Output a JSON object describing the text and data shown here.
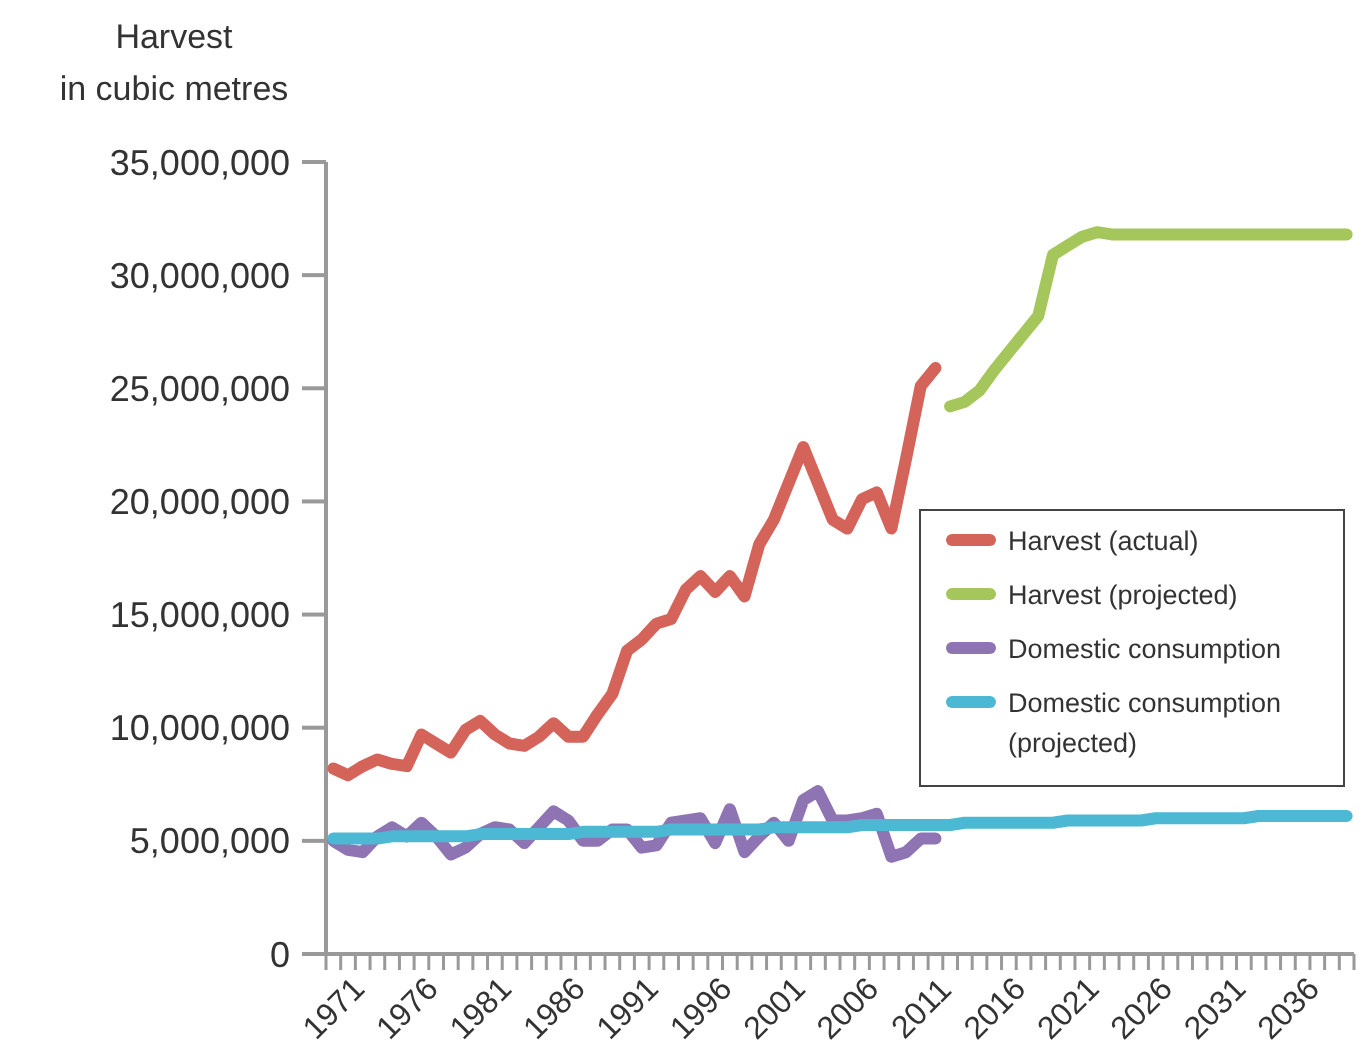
{
  "chart_data": {
    "type": "line",
    "ylabel": "Harvest in cubic metres",
    "categories": [
      "1971",
      null,
      null,
      null,
      null,
      "1976",
      null,
      null,
      null,
      null,
      "1981",
      null,
      null,
      null,
      null,
      "1986",
      null,
      null,
      null,
      null,
      "1991",
      null,
      null,
      null,
      null,
      "1996",
      null,
      null,
      null,
      null,
      "2001",
      null,
      null,
      null,
      null,
      "2006",
      null,
      null,
      null,
      null,
      "2011",
      null,
      null,
      null,
      null,
      "2016",
      null,
      null,
      null,
      null,
      "2021",
      null,
      null,
      null,
      null,
      "2026",
      null,
      null,
      null,
      null,
      "2031",
      null,
      null,
      null,
      null,
      "2036",
      null,
      null,
      null,
      null
    ],
    "ylim": [
      0,
      35000000
    ],
    "yticks": [
      0,
      {
        "value": 5000000,
        "label": "5,000,000"
      },
      {
        "value": 10000000,
        "label": "10,000,000"
      },
      {
        "value": 15000000,
        "label": "15,000,000"
      },
      {
        "value": 20000000,
        "label": "20,000,000"
      },
      {
        "value": 25000000,
        "label": "25,000,000"
      },
      {
        "value": 30000000,
        "label": "30,000,000"
      },
      {
        "value": 35000000,
        "label": "35,000,000"
      }
    ],
    "grid": false,
    "legend": "right",
    "marker": "none",
    "line_style": "solid",
    "series": [
      {
        "name": "Harvest (actual)",
        "color": "#d4635a",
        "values": [
          8200000,
          7900000,
          8300000,
          8600000,
          8400000,
          8300000,
          9700000,
          9300000,
          8900000,
          9900000,
          10300000,
          9700000,
          9300000,
          9200000,
          9600000,
          10200000,
          9600000,
          9600000,
          10600000,
          11500000,
          13400000,
          13900000,
          14600000,
          14800000,
          16100000,
          16700000,
          16000000,
          16700000,
          15800000,
          18100000,
          19200000,
          20800000,
          22400000,
          20800000,
          19200000,
          18800000,
          20100000,
          20400000,
          18800000,
          21900000,
          25100000,
          25900000,
          null,
          null,
          null,
          null,
          null,
          null,
          null,
          null,
          null,
          null,
          null,
          null,
          null,
          null,
          null,
          null,
          null,
          null,
          null,
          null,
          null,
          null,
          null,
          null,
          null,
          null,
          null,
          null
        ]
      },
      {
        "name": "Harvest (projected)",
        "color": "#a5c65a",
        "values": [
          null,
          null,
          null,
          null,
          null,
          null,
          null,
          null,
          null,
          null,
          null,
          null,
          null,
          null,
          null,
          null,
          null,
          null,
          null,
          null,
          null,
          null,
          null,
          null,
          null,
          null,
          null,
          null,
          null,
          null,
          null,
          null,
          null,
          null,
          null,
          null,
          null,
          null,
          null,
          null,
          null,
          null,
          24200000,
          24400000,
          24900000,
          25800000,
          26600000,
          27400000,
          28200000,
          30900000,
          31300000,
          31700000,
          31900000,
          31800000,
          31800000,
          31800000,
          31800000,
          31800000,
          31800000,
          31800000,
          31800000,
          31800000,
          31800000,
          31800000,
          31800000,
          31800000,
          31800000,
          31800000,
          31800000,
          31800000
        ]
      },
      {
        "name": "Domestic consumption",
        "color": "#8e74b3",
        "values": [
          5000000,
          4600000,
          4500000,
          5200000,
          5600000,
          5200000,
          5800000,
          5200000,
          4400000,
          4700000,
          5300000,
          5600000,
          5500000,
          4900000,
          5600000,
          6300000,
          5900000,
          5000000,
          5000000,
          5500000,
          5500000,
          4700000,
          4800000,
          5800000,
          5900000,
          6000000,
          4900000,
          6400000,
          4500000,
          5200000,
          5800000,
          5000000,
          6800000,
          7200000,
          5900000,
          5900000,
          6000000,
          6200000,
          4300000,
          4500000,
          5100000,
          5100000,
          null,
          null,
          null,
          null,
          null,
          null,
          null,
          null,
          null,
          null,
          null,
          null,
          null,
          null,
          null,
          null,
          null,
          null,
          null,
          null,
          null,
          null,
          null,
          null,
          null,
          null,
          null,
          null
        ]
      },
      {
        "name": "Domestic consumption (projected)",
        "color": "#4cb8d4",
        "values": [
          5100000,
          5100000,
          5100000,
          5100000,
          5200000,
          5200000,
          5200000,
          5200000,
          5200000,
          5200000,
          5300000,
          5300000,
          5300000,
          5300000,
          5300000,
          5300000,
          5300000,
          5400000,
          5400000,
          5400000,
          5400000,
          5400000,
          5400000,
          5500000,
          5500000,
          5500000,
          5500000,
          5500000,
          5500000,
          5500000,
          5600000,
          5600000,
          5600000,
          5600000,
          5600000,
          5600000,
          5700000,
          5700000,
          5700000,
          5700000,
          5700000,
          5700000,
          5700000,
          5800000,
          5800000,
          5800000,
          5800000,
          5800000,
          5800000,
          5800000,
          5900000,
          5900000,
          5900000,
          5900000,
          5900000,
          5900000,
          6000000,
          6000000,
          6000000,
          6000000,
          6000000,
          6000000,
          6000000,
          6100000,
          6100000,
          6100000,
          6100000,
          6100000,
          6100000,
          6100000
        ]
      }
    ]
  }
}
